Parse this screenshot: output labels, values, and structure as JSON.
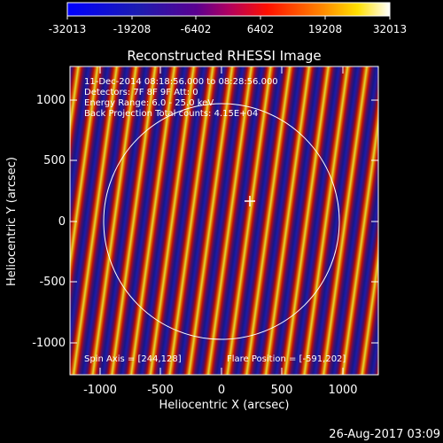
{
  "plot": {
    "title": "Reconstructed RHESSI Image",
    "xlabel": "Heliocentric X (arcsec)",
    "ylabel": "Heliocentric Y (arcsec)",
    "x_ticks": [
      "-1000",
      "-500",
      "0",
      "500",
      "1000"
    ],
    "y_ticks": [
      "1000",
      "500",
      "0",
      "-500",
      "-1000"
    ]
  },
  "colorbar": {
    "labels": [
      "-32013",
      "-19208",
      "-6402",
      "6402",
      "19208",
      "32013"
    ]
  },
  "annotations": {
    "line1": "11-Dec-2014 08:18:56.000 to 08:28:56.000",
    "line2": "Detectors: 7F 8F 9F Att: 0",
    "line3": "Energy Range: 6.0 - 25.0 keV",
    "line4": "Back Projection    Total counts: 4.15E+04",
    "spin_axis": "Spin Axis = [244,128]",
    "flare_position": "Flare Position = [-591,202]"
  },
  "footer": {
    "timestamp": "26-Aug-2017 03:09"
  },
  "colors": {
    "background": "#000000",
    "foreground": "#ffffff"
  }
}
